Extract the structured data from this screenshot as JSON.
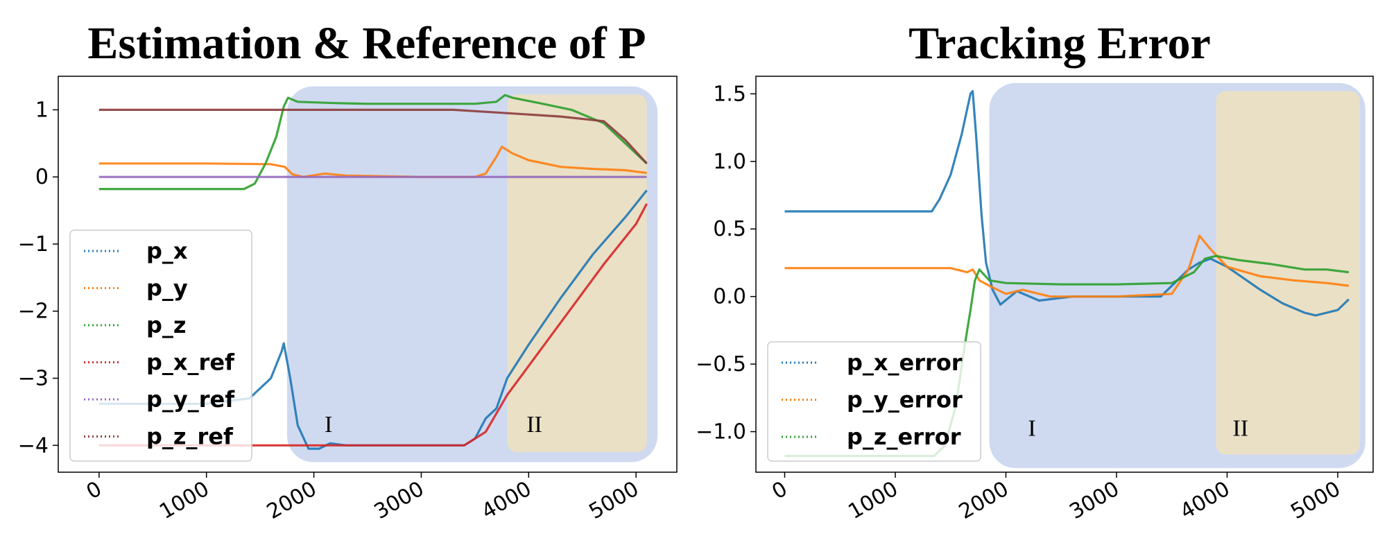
{
  "chart_data": [
    {
      "type": "line",
      "title": "Estimation & Reference of P",
      "xlabel": "",
      "ylabel": "",
      "xlim": [
        -380,
        5380
      ],
      "ylim": [
        -4.4,
        1.5
      ],
      "xticks": [
        0,
        1000,
        2000,
        3000,
        4000,
        5000
      ],
      "xtick_labels": [
        "0",
        "1000",
        "2000",
        "3000",
        "4000",
        "5000"
      ],
      "yticks": [
        1,
        0,
        -1,
        -2,
        -3,
        -4
      ],
      "ytick_labels": [
        "1",
        "0",
        "−1",
        "−2",
        "−3",
        "−4"
      ],
      "grid": false,
      "legend": "lower-left",
      "regions": [
        {
          "label": "I",
          "x": [
            1750,
            5200
          ],
          "y": [
            -4.25,
            1.35
          ],
          "color": "#cfdaf0",
          "label_pos": [
            2100,
            -3.8
          ]
        },
        {
          "label": "II",
          "x": [
            3800,
            5100
          ],
          "y": [
            -4.1,
            1.23
          ],
          "color": "#eae0c6",
          "label_pos": [
            3980,
            -3.8
          ]
        }
      ],
      "series": [
        {
          "name": "p_x",
          "color": "#1f77b4",
          "points": [
            [
              0,
              -3.38
            ],
            [
              1000,
              -3.38
            ],
            [
              1400,
              -3.3
            ],
            [
              1600,
              -3.0
            ],
            [
              1700,
              -2.6
            ],
            [
              1720,
              -2.48
            ],
            [
              1780,
              -3.0
            ],
            [
              1850,
              -3.7
            ],
            [
              1950,
              -4.05
            ],
            [
              2050,
              -4.05
            ],
            [
              2150,
              -3.97
            ],
            [
              2300,
              -4.0
            ],
            [
              3000,
              -4.0
            ],
            [
              3400,
              -4.0
            ],
            [
              3500,
              -3.9
            ],
            [
              3600,
              -3.6
            ],
            [
              3700,
              -3.45
            ],
            [
              3800,
              -3.0
            ],
            [
              4000,
              -2.5
            ],
            [
              4300,
              -1.8
            ],
            [
              4600,
              -1.15
            ],
            [
              4900,
              -0.6
            ],
            [
              5100,
              -0.2
            ]
          ]
        },
        {
          "name": "p_y",
          "color": "#ff7f0e",
          "points": [
            [
              0,
              0.2
            ],
            [
              1000,
              0.2
            ],
            [
              1600,
              0.19
            ],
            [
              1730,
              0.15
            ],
            [
              1800,
              0.04
            ],
            [
              1900,
              0.0
            ],
            [
              2100,
              0.05
            ],
            [
              2300,
              0.02
            ],
            [
              3000,
              0.0
            ],
            [
              3500,
              0.0
            ],
            [
              3600,
              0.05
            ],
            [
              3700,
              0.3
            ],
            [
              3750,
              0.45
            ],
            [
              3850,
              0.35
            ],
            [
              4000,
              0.25
            ],
            [
              4300,
              0.15
            ],
            [
              4600,
              0.12
            ],
            [
              4900,
              0.1
            ],
            [
              5100,
              0.06
            ]
          ]
        },
        {
          "name": "p_z",
          "color": "#2ca02c",
          "points": [
            [
              0,
              -0.18
            ],
            [
              1000,
              -0.18
            ],
            [
              1350,
              -0.18
            ],
            [
              1450,
              -0.1
            ],
            [
              1550,
              0.2
            ],
            [
              1650,
              0.6
            ],
            [
              1720,
              1.05
            ],
            [
              1760,
              1.18
            ],
            [
              1850,
              1.12
            ],
            [
              2200,
              1.1
            ],
            [
              2500,
              1.09
            ],
            [
              3000,
              1.09
            ],
            [
              3500,
              1.09
            ],
            [
              3700,
              1.12
            ],
            [
              3780,
              1.22
            ],
            [
              3850,
              1.18
            ],
            [
              4100,
              1.1
            ],
            [
              4400,
              1.0
            ],
            [
              4700,
              0.8
            ],
            [
              4900,
              0.5
            ],
            [
              5100,
              0.2
            ]
          ]
        },
        {
          "name": "p_x_ref",
          "color": "#d62728",
          "points": [
            [
              0,
              -4.0
            ],
            [
              3400,
              -4.0
            ],
            [
              3600,
              -3.8
            ],
            [
              3800,
              -3.25
            ],
            [
              4100,
              -2.6
            ],
            [
              4400,
              -1.95
            ],
            [
              4700,
              -1.3
            ],
            [
              5000,
              -0.7
            ],
            [
              5100,
              -0.4
            ]
          ]
        },
        {
          "name": "p_y_ref",
          "color": "#9467bd",
          "points": [
            [
              0,
              0.0
            ],
            [
              5100,
              0.0
            ]
          ]
        },
        {
          "name": "p_z_ref",
          "color": "#8c3c3c",
          "points": [
            [
              0,
              1.0
            ],
            [
              3300,
              1.0
            ],
            [
              3800,
              0.95
            ],
            [
              4300,
              0.9
            ],
            [
              4700,
              0.83
            ],
            [
              4900,
              0.55
            ],
            [
              5100,
              0.2
            ]
          ]
        }
      ]
    },
    {
      "type": "line",
      "title": "Tracking Error",
      "xlabel": "",
      "ylabel": "",
      "xlim": [
        -260,
        5320
      ],
      "ylim": [
        -1.3,
        1.63
      ],
      "xticks": [
        0,
        1000,
        2000,
        3000,
        4000,
        5000
      ],
      "xtick_labels": [
        "0",
        "1000",
        "2000",
        "3000",
        "4000",
        "5000"
      ],
      "yticks": [
        1.5,
        1.0,
        0.5,
        0.0,
        -0.5,
        -1.0
      ],
      "ytick_labels": [
        "1.5",
        "1.0",
        "0.5",
        "0.0",
        "−0.5",
        "−1.0"
      ],
      "grid": false,
      "legend": "lower-left",
      "regions": [
        {
          "label": "I",
          "x": [
            1850,
            5250
          ],
          "y": [
            -1.27,
            1.58
          ],
          "color": "#cfdaf0",
          "label_pos": [
            2200,
            -1.03
          ]
        },
        {
          "label": "II",
          "x": [
            3900,
            5200
          ],
          "y": [
            -1.17,
            1.52
          ],
          "color": "#eae0c6",
          "label_pos": [
            4050,
            -1.03
          ]
        }
      ],
      "series": [
        {
          "name": "p_x_error",
          "color": "#1f77b4",
          "points": [
            [
              0,
              0.63
            ],
            [
              1000,
              0.63
            ],
            [
              1330,
              0.63
            ],
            [
              1400,
              0.72
            ],
            [
              1500,
              0.9
            ],
            [
              1600,
              1.2
            ],
            [
              1680,
              1.5
            ],
            [
              1700,
              1.52
            ],
            [
              1730,
              1.2
            ],
            [
              1780,
              0.6
            ],
            [
              1820,
              0.25
            ],
            [
              1880,
              0.05
            ],
            [
              1950,
              -0.06
            ],
            [
              2100,
              0.04
            ],
            [
              2300,
              -0.03
            ],
            [
              2600,
              0.0
            ],
            [
              3000,
              0.0
            ],
            [
              3400,
              0.0
            ],
            [
              3550,
              0.12
            ],
            [
              3650,
              0.2
            ],
            [
              3750,
              0.25
            ],
            [
              3850,
              0.28
            ],
            [
              4000,
              0.22
            ],
            [
              4300,
              0.05
            ],
            [
              4500,
              -0.05
            ],
            [
              4700,
              -0.12
            ],
            [
              4800,
              -0.14
            ],
            [
              5000,
              -0.1
            ],
            [
              5100,
              -0.02
            ]
          ]
        },
        {
          "name": "p_y_error",
          "color": "#ff7f0e",
          "points": [
            [
              0,
              0.21
            ],
            [
              1000,
              0.21
            ],
            [
              1500,
              0.21
            ],
            [
              1650,
              0.18
            ],
            [
              1700,
              0.2
            ],
            [
              1760,
              0.12
            ],
            [
              1850,
              0.08
            ],
            [
              2000,
              0.02
            ],
            [
              2150,
              0.05
            ],
            [
              2400,
              0.0
            ],
            [
              3000,
              0.0
            ],
            [
              3500,
              0.02
            ],
            [
              3650,
              0.2
            ],
            [
              3750,
              0.45
            ],
            [
              3850,
              0.35
            ],
            [
              4000,
              0.22
            ],
            [
              4300,
              0.15
            ],
            [
              4600,
              0.12
            ],
            [
              4900,
              0.1
            ],
            [
              5100,
              0.08
            ]
          ]
        },
        {
          "name": "p_z_error",
          "color": "#2ca02c",
          "points": [
            [
              0,
              -1.18
            ],
            [
              1000,
              -1.18
            ],
            [
              1350,
              -1.18
            ],
            [
              1450,
              -1.1
            ],
            [
              1550,
              -0.8
            ],
            [
              1620,
              -0.4
            ],
            [
              1680,
              -0.1
            ],
            [
              1720,
              0.12
            ],
            [
              1760,
              0.2
            ],
            [
              1850,
              0.12
            ],
            [
              2000,
              0.1
            ],
            [
              2500,
              0.09
            ],
            [
              3000,
              0.09
            ],
            [
              3500,
              0.1
            ],
            [
              3700,
              0.18
            ],
            [
              3800,
              0.28
            ],
            [
              3900,
              0.3
            ],
            [
              4100,
              0.27
            ],
            [
              4400,
              0.24
            ],
            [
              4700,
              0.2
            ],
            [
              4900,
              0.2
            ],
            [
              5100,
              0.18
            ]
          ]
        }
      ]
    }
  ]
}
